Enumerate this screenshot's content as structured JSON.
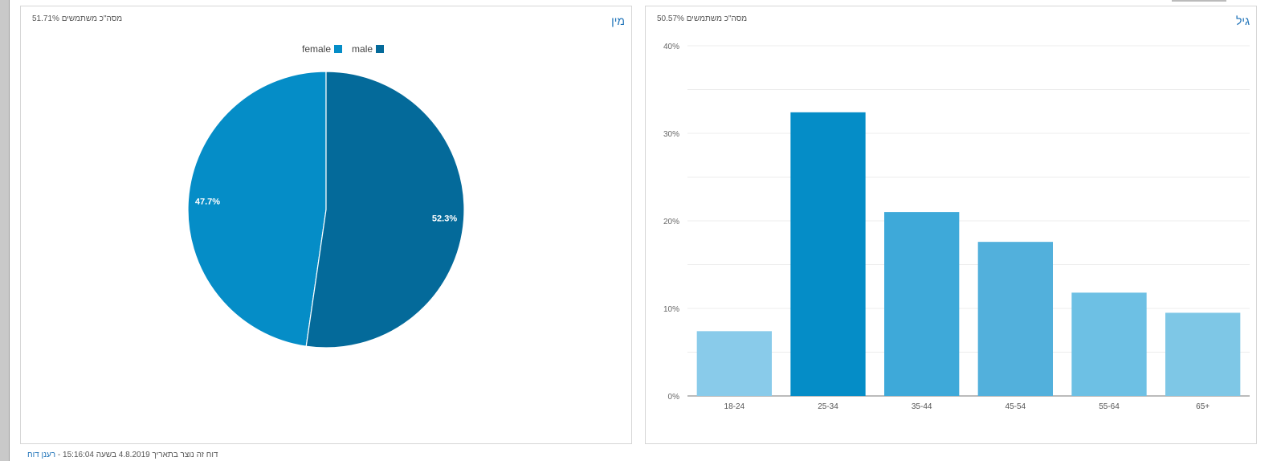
{
  "gender_card": {
    "title": "מין",
    "subtitle": "51.71% מסה\"כ משתמשים"
  },
  "age_card": {
    "title": "גיל",
    "subtitle": "50.57% מסה\"כ משתמשים"
  },
  "footer": {
    "text": "דוח זה נוצר בתאריך 4.8.2019 בשעה 15:16:04 - ",
    "refresh_label": "רענן דוח"
  },
  "colors": {
    "female": "#058dc7",
    "male": "#046a9a"
  },
  "chart_data": [
    {
      "type": "pie",
      "labels": [
        "female",
        "male"
      ],
      "values": [
        47.7,
        52.3
      ],
      "data_labels": [
        "47.7%",
        "52.3%"
      ],
      "legend_position": "top-center",
      "colors": [
        "#058dc7",
        "#046a9a"
      ]
    },
    {
      "type": "bar",
      "categories": [
        "18-24",
        "25-34",
        "35-44",
        "45-54",
        "55-64",
        "65+"
      ],
      "values": [
        7.4,
        32.4,
        21.0,
        17.6,
        11.8,
        9.5
      ],
      "ylim": [
        0,
        40
      ],
      "yticks": [
        0,
        10,
        20,
        30,
        40
      ],
      "ytick_labels": [
        "0%",
        "10%",
        "20%",
        "30%",
        "40%"
      ],
      "grid": true,
      "colors": [
        "#89cbea",
        "#058dc7",
        "#3ea9d9",
        "#52b0dc",
        "#6dc0e4",
        "#7ec7e6"
      ]
    }
  ]
}
